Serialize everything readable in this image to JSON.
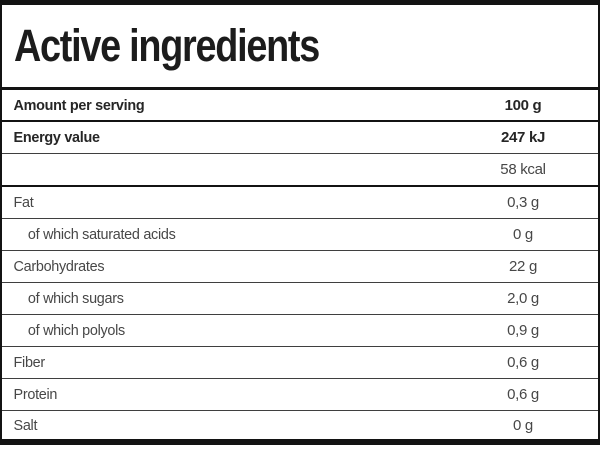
{
  "label": {
    "title": "Active ingredients",
    "header": {
      "label": "Amount per serving",
      "value": "100 g"
    },
    "rows": [
      {
        "label": "Energy value",
        "value": "247 kJ",
        "bold": true,
        "indent": false,
        "sep": "thin"
      },
      {
        "label": "",
        "value": "58 kcal",
        "bold": false,
        "indent": false,
        "sep": "heavy"
      },
      {
        "label": "Fat",
        "value": "0,3 g",
        "bold": false,
        "indent": false,
        "sep": "thin"
      },
      {
        "label": "of which saturated acids",
        "value": "0 g",
        "bold": false,
        "indent": true,
        "sep": "thin"
      },
      {
        "label": "Carbohydrates",
        "value": "22 g",
        "bold": false,
        "indent": false,
        "sep": "thin"
      },
      {
        "label": "of which sugars",
        "value": "2,0 g",
        "bold": false,
        "indent": true,
        "sep": "thin"
      },
      {
        "label": "of which polyols",
        "value": "0,9 g",
        "bold": false,
        "indent": true,
        "sep": "thin"
      },
      {
        "label": "Fiber",
        "value": "0,6 g",
        "bold": false,
        "indent": false,
        "sep": "thin"
      },
      {
        "label": "Protein",
        "value": "0,6 g",
        "bold": false,
        "indent": false,
        "sep": "thin"
      },
      {
        "label": "Salt",
        "value": "0 g",
        "bold": false,
        "indent": false,
        "sep": "none"
      }
    ]
  },
  "colors": {
    "border_heavy": "#131313",
    "separator_thin": "#3f3f3f",
    "text_regular": "#474747",
    "text_bold": "#262626",
    "background": "#ffffff"
  }
}
